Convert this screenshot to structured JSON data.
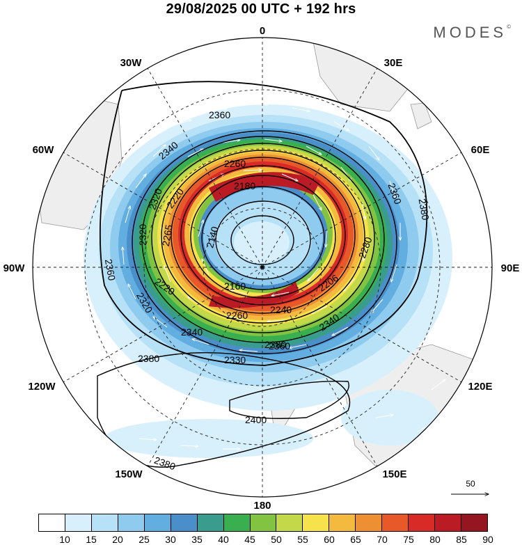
{
  "header": {
    "title": "29/08/2025  00 UTC  + 192 hrs",
    "brand": "MODES",
    "brand_mark": "©"
  },
  "map": {
    "projection": "south-polar-stereographic",
    "longitude_labels": [
      "0",
      "30E",
      "60E",
      "90E",
      "120E",
      "150E",
      "180",
      "150W",
      "120W",
      "90W",
      "60W",
      "30W"
    ],
    "contour_labels": [
      "2360",
      "2340",
      "2260",
      "2180",
      "2220",
      "2320",
      "2320",
      "2265",
      "2140",
      "2360",
      "2320",
      "2220",
      "2160",
      "2206",
      "2340",
      "2280",
      "2360",
      "2380",
      "2380",
      "2380",
      "2330",
      "2360",
      "2340",
      "2260",
      "2240",
      "2400",
      "2380"
    ],
    "contour_variable": "geopotential height (dam)",
    "shaded_variable": "wind speed"
  },
  "legend": {
    "ticks": [
      "10",
      "15",
      "20",
      "25",
      "30",
      "35",
      "40",
      "45",
      "50",
      "55",
      "60",
      "65",
      "70",
      "75",
      "80",
      "85",
      "90"
    ],
    "colors": [
      "#ffffff",
      "#d7f0fb",
      "#b6e1f6",
      "#8ecbef",
      "#63aee1",
      "#4a8fc9",
      "#3a9c8d",
      "#3aaf4f",
      "#82c441",
      "#c3d94a",
      "#f6e24a",
      "#f4b93f",
      "#ef8f34",
      "#e8592a",
      "#d82a26",
      "#bb1b24",
      "#951520"
    ]
  },
  "reference_vector": {
    "label": "50"
  }
}
